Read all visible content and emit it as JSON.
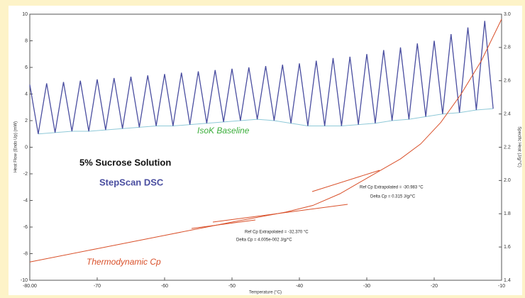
{
  "chart_data": {
    "type": "line",
    "xlabel": "Temperature (°C)",
    "ylabel": "Heat Flow (Endo Up) (mW)",
    "y2label": "Specific Heat (J/g/°C)",
    "xlim": [
      -80,
      -10
    ],
    "xticks": [
      {
        "value": -80,
        "label": "-80.00"
      },
      -70,
      -60,
      -50,
      -40,
      -30,
      -20,
      -10
    ],
    "ylim": [
      -10,
      10
    ],
    "yticks": [
      -10,
      -8,
      -6,
      -4,
      -2,
      0,
      2,
      4,
      6,
      8,
      10
    ],
    "y2lim": [
      1.4,
      3.0
    ],
    "y2ticks": [
      1.4,
      1.6,
      1.8,
      {
        "value": 2.0,
        "label": "2.0"
      },
      2.2,
      2.4,
      2.6,
      2.8,
      {
        "value": 3.0,
        "label": "3.0"
      }
    ],
    "grid": false,
    "series": [
      {
        "name": "StepScan DSC",
        "color": "#4a4ea0",
        "x": [
          -80,
          -78.75,
          -77.5,
          -76.25,
          -75,
          -73.75,
          -72.5,
          -71.25,
          -70,
          -68.75,
          -67.5,
          -66.25,
          -65,
          -63.75,
          -62.5,
          -61.25,
          -60,
          -58.75,
          -57.5,
          -56.25,
          -55,
          -53.75,
          -52.5,
          -51.25,
          -50,
          -48.75,
          -47.5,
          -46.25,
          -45,
          -43.75,
          -42.5,
          -41.25,
          -40,
          -38.75,
          -37.5,
          -36.25,
          -35,
          -33.75,
          -32.5,
          -31.25,
          -30,
          -28.75,
          -27.5,
          -26.25,
          -25,
          -23.75,
          -22.5,
          -21.25,
          -20,
          -18.75,
          -17.5,
          -16.25,
          -15,
          -13.75,
          -12.5,
          -11.25
        ],
        "values": [
          4.7,
          1.0,
          4.8,
          1.1,
          4.9,
          1.2,
          5.0,
          1.2,
          5.1,
          1.3,
          5.2,
          1.4,
          5.3,
          1.5,
          5.4,
          1.6,
          5.5,
          1.6,
          5.6,
          1.7,
          5.7,
          1.8,
          5.8,
          1.9,
          5.9,
          2.0,
          6.0,
          2.1,
          6.1,
          2.0,
          6.2,
          1.8,
          6.3,
          1.6,
          6.5,
          1.6,
          6.7,
          1.6,
          6.8,
          1.7,
          7.0,
          1.8,
          7.3,
          2.0,
          7.5,
          2.1,
          7.8,
          2.3,
          8.0,
          2.5,
          8.5,
          2.6,
          9.0,
          2.8,
          9.5,
          2.9
        ]
      },
      {
        "name": "IsoK Baseline",
        "color": "#8fc9d8",
        "x": [
          -78.75,
          -76.25,
          -73.75,
          -71.25,
          -68.75,
          -66.25,
          -63.75,
          -61.25,
          -58.75,
          -56.25,
          -53.75,
          -51.25,
          -48.75,
          -46.25,
          -43.75,
          -41.25,
          -38.75,
          -36.25,
          -33.75,
          -31.25,
          -28.75,
          -26.25,
          -23.75,
          -21.25,
          -18.75,
          -16.25,
          -13.75,
          -11.25
        ],
        "values": [
          1.0,
          1.1,
          1.2,
          1.2,
          1.3,
          1.4,
          1.5,
          1.6,
          1.6,
          1.7,
          1.8,
          1.9,
          2.0,
          2.1,
          2.0,
          1.8,
          1.6,
          1.6,
          1.6,
          1.7,
          1.8,
          2.0,
          2.1,
          2.3,
          2.5,
          2.6,
          2.8,
          2.9
        ]
      },
      {
        "name": "Thermodynamic Cp",
        "color": "#d9502a",
        "axis": "y2",
        "x": [
          -80,
          -70,
          -60,
          -50,
          -42,
          -38,
          -34,
          -31,
          -28,
          -25,
          -22,
          -19,
          -16,
          -13,
          -10
        ],
        "values": [
          1.51,
          1.59,
          1.67,
          1.75,
          1.81,
          1.85,
          1.92,
          1.99,
          2.06,
          2.13,
          2.22,
          2.35,
          2.52,
          2.72,
          2.97
        ]
      }
    ],
    "annotations": {
      "title": "5% Sucrose Solution",
      "subtitle": "StepScan DSC",
      "baseline": "IsoK Baseline",
      "cp": "Thermodynamic Cp",
      "ref1": "Ref Cp Extrapolated = -32.370 °C",
      "delta1": "Delta Cp = 4.005e-002 J/g/°C",
      "ref2": "Ref Cp Extrapolated = -30.983 °C",
      "delta2": "Delta Cp = 0.315 J/g/°C"
    }
  }
}
